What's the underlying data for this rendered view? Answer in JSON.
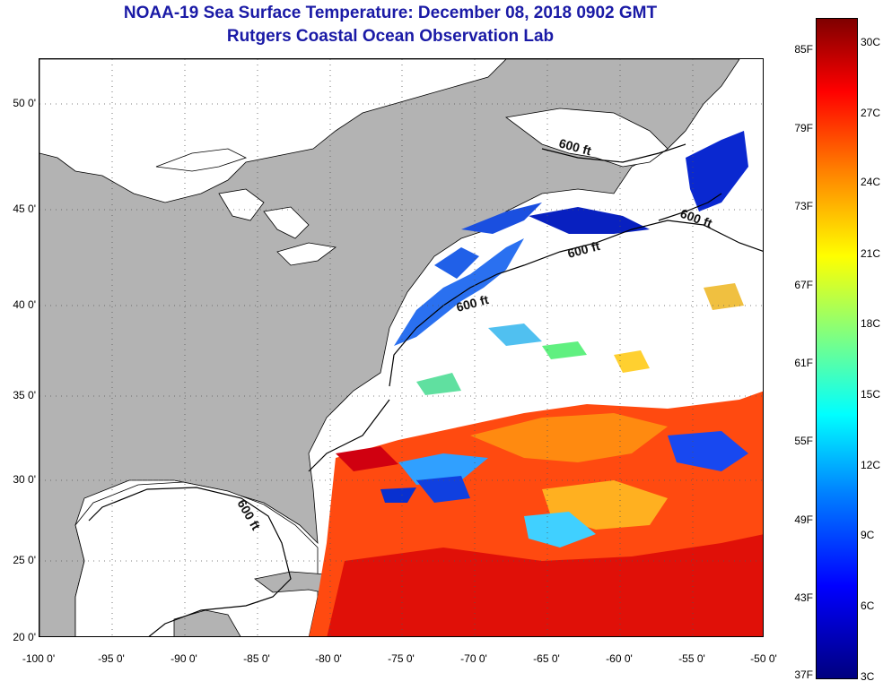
{
  "header": {
    "title": "NOAA-19 Sea Surface Temperature:  December 08, 2018 0902 GMT",
    "subtitle": "Rutgers Coastal Ocean Observation Lab"
  },
  "map": {
    "lat_ticks": [
      "50 0'",
      "45 0'",
      "40 0'",
      "35 0'",
      "30 0'",
      "25 0'",
      "20 0'"
    ],
    "lon_ticks": [
      "-100 0'",
      "-95 0'",
      "-90 0'",
      "-85 0'",
      "-80 0'",
      "-75 0'",
      "-70 0'",
      "-65 0'",
      "-60 0'",
      "-55 0'",
      "-50 0'"
    ],
    "contour_labels": [
      "600 ft",
      "600 ft",
      "600 ft",
      "600 ft",
      "600 ft"
    ],
    "colors": {
      "land": "#b3b3b3",
      "cloud": "#ffffff",
      "coastline": "#000000",
      "grid": "#555555"
    }
  },
  "colorbar": {
    "fahrenheit_ticks": [
      "85F",
      "79F",
      "73F",
      "67F",
      "61F",
      "55F",
      "49F",
      "43F",
      "37F"
    ],
    "celsius_ticks": [
      "30C",
      "27C",
      "24C",
      "21C",
      "18C",
      "15C",
      "12C",
      "9C",
      "6C",
      "3C"
    ],
    "stops": [
      "#00007f",
      "#0000ff",
      "#0080ff",
      "#00ffff",
      "#80ff80",
      "#ffff00",
      "#ff8000",
      "#ff0000",
      "#7f0000"
    ]
  }
}
